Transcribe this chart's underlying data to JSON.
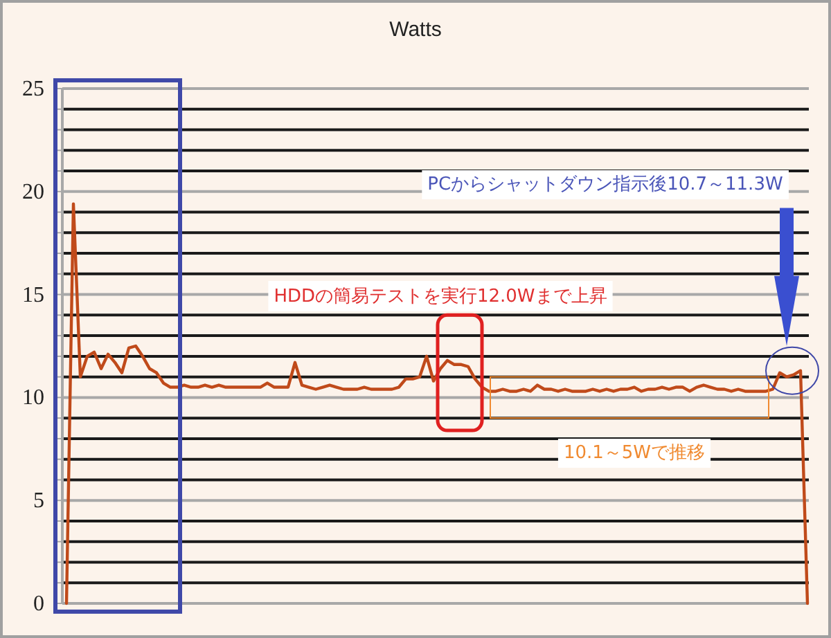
{
  "chart_data": {
    "type": "line",
    "title": "Watts",
    "categories": [
      null,
      null,
      null,
      null,
      null,
      null,
      null,
      null,
      null,
      null,
      null,
      null,
      null,
      null,
      null,
      null,
      null,
      null,
      null,
      null,
      null,
      null,
      null,
      null,
      null,
      null,
      null,
      null,
      null,
      null,
      null,
      null,
      null,
      null,
      null,
      null,
      null,
      null,
      null,
      null,
      null,
      null,
      null,
      null,
      null,
      null,
      null,
      null,
      null,
      null,
      null,
      null,
      null,
      null,
      null,
      null,
      null,
      null,
      null,
      null,
      null,
      null,
      null,
      null,
      null,
      null,
      null,
      null,
      null,
      null,
      null,
      null,
      null,
      null,
      null,
      null,
      null,
      null,
      null,
      null,
      null,
      null,
      null,
      null,
      null,
      null,
      null,
      null,
      null,
      null,
      null,
      null,
      null,
      null,
      null,
      null,
      null,
      null,
      null,
      null,
      null,
      null,
      null,
      null,
      null,
      null,
      null,
      null
    ],
    "series": [
      {
        "color": "#c04a1a",
        "values": [
          0,
          19.4,
          11.0,
          12.0,
          12.2,
          11.4,
          12.1,
          11.7,
          11.2,
          12.4,
          12.5,
          12.0,
          11.4,
          11.2,
          10.7,
          10.5,
          10.5,
          10.6,
          10.5,
          10.5,
          10.6,
          10.5,
          10.6,
          10.5,
          10.5,
          10.5,
          10.5,
          10.5,
          10.5,
          10.7,
          10.5,
          10.5,
          10.5,
          11.7,
          10.6,
          10.5,
          10.4,
          10.5,
          10.6,
          10.5,
          10.4,
          10.4,
          10.4,
          10.5,
          10.4,
          10.4,
          10.4,
          10.4,
          10.5,
          10.9,
          10.9,
          11.0,
          12.0,
          10.8,
          11.4,
          11.8,
          11.6,
          11.6,
          11.5,
          10.9,
          10.5,
          10.3,
          10.3,
          10.4,
          10.3,
          10.3,
          10.4,
          10.3,
          10.6,
          10.4,
          10.4,
          10.3,
          10.4,
          10.3,
          10.3,
          10.3,
          10.4,
          10.3,
          10.4,
          10.3,
          10.4,
          10.4,
          10.5,
          10.3,
          10.4,
          10.4,
          10.5,
          10.4,
          10.5,
          10.5,
          10.3,
          10.5,
          10.6,
          10.5,
          10.4,
          10.4,
          10.3,
          10.4,
          10.3,
          10.3,
          10.3,
          10.3,
          10.4,
          11.2,
          11.0,
          11.1,
          11.3,
          0
        ]
      }
    ],
    "ylim": [
      0,
      25
    ],
    "yticks": [
      0,
      {
        "value": 1,
        "label": null
      },
      {
        "value": 2,
        "label": null
      },
      {
        "value": 3,
        "label": null
      },
      {
        "value": 4,
        "label": null
      },
      5,
      {
        "value": 6,
        "label": null
      },
      {
        "value": 7,
        "label": null
      },
      {
        "value": 8,
        "label": null
      },
      {
        "value": 9,
        "label": null
      },
      10,
      {
        "value": 11,
        "label": null
      },
      {
        "value": 12,
        "label": null
      },
      {
        "value": 13,
        "label": null
      },
      {
        "value": 14,
        "label": null
      },
      15,
      {
        "value": 16,
        "label": null
      },
      {
        "value": 17,
        "label": null
      },
      {
        "value": 18,
        "label": null
      },
      {
        "value": 19,
        "label": null
      },
      20,
      {
        "value": 21,
        "label": null
      },
      {
        "value": 22,
        "label": null
      },
      {
        "value": 23,
        "label": null
      },
      {
        "value": 24,
        "label": null
      },
      25
    ],
    "grid": "y",
    "annotations": [
      "PCからシャットダウン指示後10.7～11.3W",
      "HDDの簡易テストを実行12.0Wまで上昇",
      "10.1～5Wで推移"
    ]
  }
}
